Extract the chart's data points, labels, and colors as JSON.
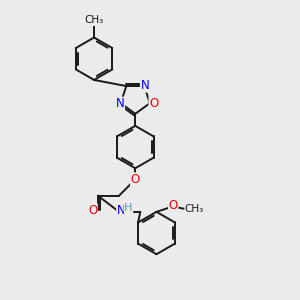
{
  "bg_color": "#ebebeb",
  "bond_color": "#1a1a1a",
  "bond_width": 1.4,
  "atom_colors": {
    "N": "#0000ee",
    "O": "#ee0000",
    "H": "#44aaaa",
    "C": "#1a1a1a"
  },
  "font_size": 8.5,
  "fig_size": [
    3.0,
    3.0
  ],
  "dpi": 100
}
